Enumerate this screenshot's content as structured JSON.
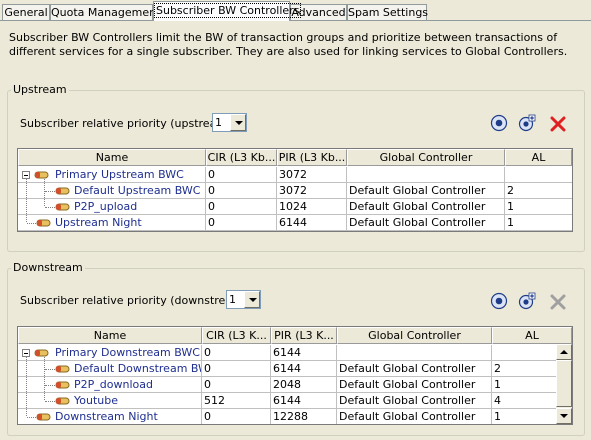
{
  "tabs": [
    {
      "label": "General",
      "active": false
    },
    {
      "label": "Quota Management",
      "active": false
    },
    {
      "label": "Subscriber BW Controllers",
      "active": true
    },
    {
      "label": "Advanced",
      "active": false
    },
    {
      "label": "Spam Settings",
      "active": false
    }
  ],
  "description": "Subscriber BW Controllers limit the BW of transaction groups and prioritize between transactions of different services for a single subscriber. They are also used for linking services to Global Controllers.",
  "upstream": {
    "title": "Upstream",
    "priority_label": "Subscriber relative priority (upstream):",
    "priority_value": "1",
    "columns": [
      "Name",
      "CIR (L3 Kb...",
      "PIR (L3 Kb...",
      "Global Controller",
      "AL"
    ],
    "rows": [
      {
        "name": "Primary Upstream BWC",
        "cir": "0",
        "pir": "3072",
        "gc": "",
        "al": ""
      },
      {
        "name": "Default Upstream BWC",
        "cir": "0",
        "pir": "3072",
        "gc": "Default Global Controller",
        "al": "2"
      },
      {
        "name": "P2P_upload",
        "cir": "0",
        "pir": "1024",
        "gc": "Default Global Controller",
        "al": "1"
      },
      {
        "name": "Upstream Night",
        "cir": "0",
        "pir": "6144",
        "gc": "Default Global Controller",
        "al": "1"
      }
    ]
  },
  "downstream": {
    "title": "Downstream",
    "priority_label": "Subscriber relative priority (downstream):",
    "priority_value": "1",
    "columns": [
      "Name",
      "CIR (L3 K...",
      "PIR (L3 K...",
      "Global Controller",
      "AL"
    ],
    "rows": [
      {
        "name": "Primary Downstream BWC",
        "cir": "0",
        "pir": "6144",
        "gc": "",
        "al": ""
      },
      {
        "name": "Default Downstream BWC",
        "cir": "0",
        "pir": "6144",
        "gc": "Default Global Controller",
        "al": "2"
      },
      {
        "name": "P2P_download",
        "cir": "0",
        "pir": "2048",
        "gc": "Default Global Controller",
        "al": "1"
      },
      {
        "name": "Youtube",
        "cir": "512",
        "pir": "6144",
        "gc": "Default Global Controller",
        "al": "4"
      },
      {
        "name": "Downstream Night",
        "cir": "0",
        "pir": "12288",
        "gc": "Default Global Controller",
        "al": "1"
      }
    ]
  },
  "icons": {
    "add": "add-controller-icon",
    "add_sub": "add-sub-controller-icon",
    "delete": "delete-icon"
  },
  "colors": {
    "tree_text": "#1f2f8f",
    "delete_active": "#e02020",
    "delete_disabled": "#a0a0a0",
    "node_icon": "#e8c060"
  }
}
